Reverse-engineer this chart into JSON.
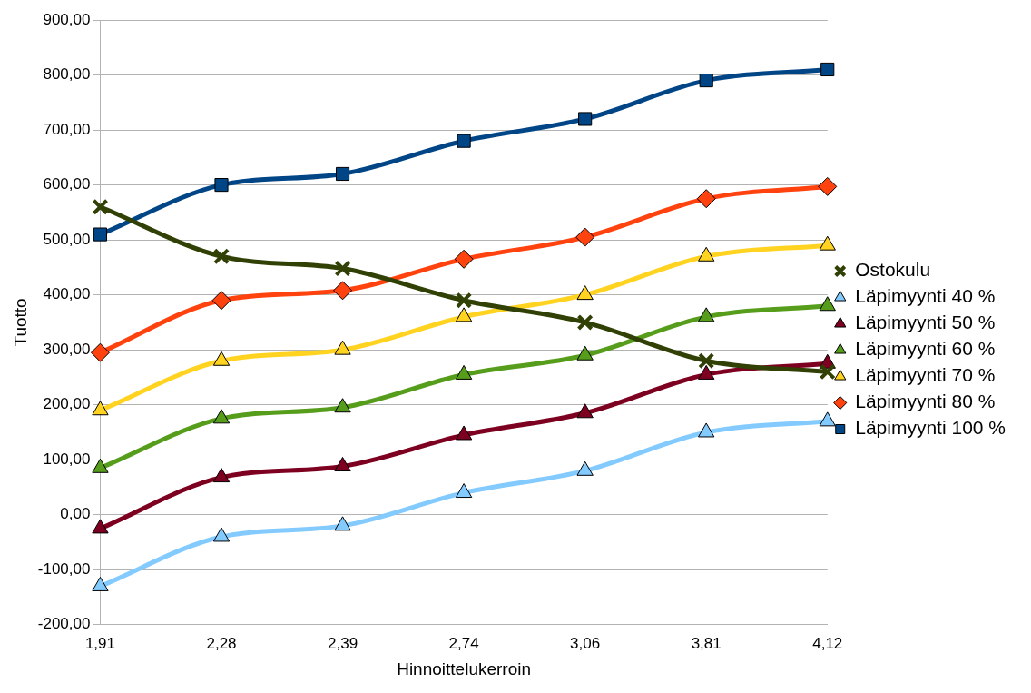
{
  "chart_data": {
    "type": "line",
    "xlabel": "Hinnoittelukerroin",
    "ylabel": "Tuotto",
    "categories": [
      "1,91",
      "2,28",
      "2,39",
      "2,74",
      "3,06",
      "3,81",
      "4,12"
    ],
    "ylim": [
      -200,
      900
    ],
    "yticks": [
      {
        "value": -200,
        "label": "-200,00"
      },
      {
        "value": -100,
        "label": "-100,00"
      },
      {
        "value": 0,
        "label": "0,00"
      },
      {
        "value": 100,
        "label": "100,00"
      },
      {
        "value": 200,
        "label": "200,00"
      },
      {
        "value": 300,
        "label": "300,00"
      },
      {
        "value": 400,
        "label": "400,00"
      },
      {
        "value": 500,
        "label": "500,00"
      },
      {
        "value": 600,
        "label": "600,00"
      },
      {
        "value": 700,
        "label": "700,00"
      },
      {
        "value": 800,
        "label": "800,00"
      },
      {
        "value": 900,
        "label": "900,00"
      }
    ],
    "grid": "y",
    "legend": "right",
    "line_style": "solid",
    "series": [
      {
        "name": "Ostokulu",
        "color": "#314004",
        "marker": "cross",
        "values": [
          560,
          470,
          448,
          390,
          350,
          280,
          260
        ]
      },
      {
        "name": "Läpimyynti 40 %",
        "color": "#83caff",
        "marker": "triangle",
        "values": [
          -130,
          -40,
          -20,
          40,
          80,
          150,
          170
        ]
      },
      {
        "name": "Läpimyynti 50 %",
        "color": "#7e0021",
        "marker": "triangle",
        "values": [
          -25,
          68,
          88,
          145,
          185,
          255,
          275
        ]
      },
      {
        "name": "Läpimyynti 60 %",
        "color": "#579d1c",
        "marker": "triangle",
        "values": [
          85,
          175,
          195,
          255,
          290,
          360,
          380
        ]
      },
      {
        "name": "Läpimyynti 70 %",
        "color": "#ffd320",
        "marker": "triangle",
        "values": [
          190,
          280,
          300,
          360,
          400,
          470,
          490
        ]
      },
      {
        "name": "Läpimyynti 80 %",
        "color": "#ff420e",
        "marker": "diamond",
        "values": [
          295,
          390,
          408,
          465,
          505,
          575,
          597
        ]
      },
      {
        "name": "Läpimyynti 100 %",
        "color": "#004586",
        "marker": "square",
        "values": [
          510,
          600,
          620,
          680,
          720,
          790,
          810
        ]
      }
    ]
  }
}
